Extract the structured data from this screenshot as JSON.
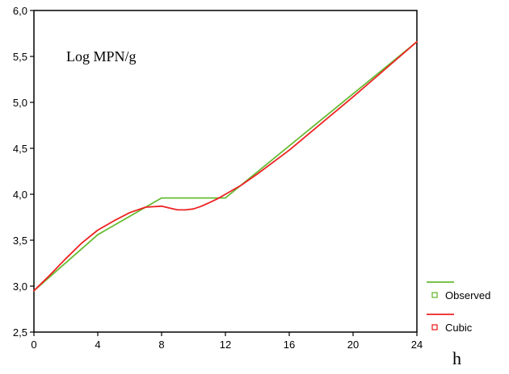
{
  "chart_data": {
    "type": "line",
    "annotation": "Log MPN/g",
    "x_unit_label": "h",
    "xlim": [
      0,
      24
    ],
    "ylim": [
      2.5,
      6.0
    ],
    "x_ticks": [
      "0",
      "4",
      "8",
      "12",
      "16",
      "20",
      "24"
    ],
    "y_ticks": [
      "2,5",
      "3,0",
      "3,5",
      "4,0",
      "4,5",
      "5,0",
      "5,5",
      "6,0"
    ],
    "x_tick_values": [
      0,
      4,
      8,
      12,
      16,
      20,
      24
    ],
    "y_tick_values": [
      2.5,
      3.0,
      3.5,
      4.0,
      4.5,
      5.0,
      5.5,
      6.0
    ],
    "legend_position": "right",
    "series": [
      {
        "name": "Observed",
        "color": "#66bb33",
        "x": [
          0,
          4,
          8,
          12,
          24
        ],
        "y": [
          2.95,
          3.56,
          3.96,
          3.96,
          5.66
        ]
      },
      {
        "name": "Cubic",
        "color": "#ee2222",
        "x": [
          0,
          1,
          2,
          3,
          4,
          5,
          6,
          7,
          8,
          8.5,
          9,
          9.5,
          10,
          10.5,
          11,
          11.5,
          12,
          13,
          14,
          16,
          18,
          20,
          22,
          24
        ],
        "y": [
          2.95,
          3.12,
          3.3,
          3.47,
          3.61,
          3.71,
          3.8,
          3.86,
          3.87,
          3.85,
          3.83,
          3.83,
          3.84,
          3.87,
          3.91,
          3.95,
          4.0,
          4.1,
          4.22,
          4.48,
          4.77,
          5.06,
          5.36,
          5.66
        ]
      }
    ]
  }
}
